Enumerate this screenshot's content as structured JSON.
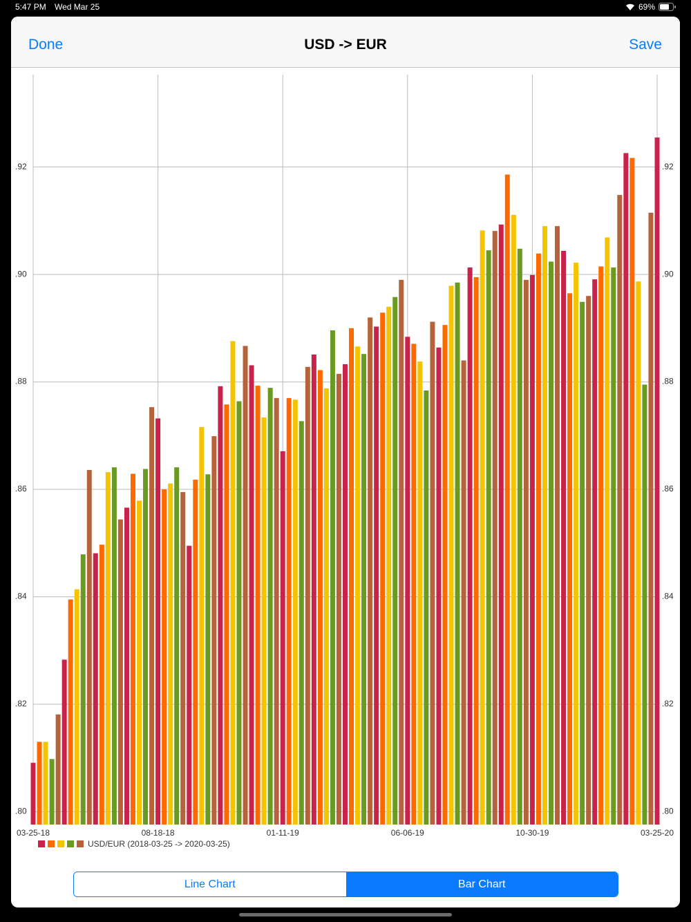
{
  "status_bar": {
    "time": "5:47 PM",
    "date": "Wed Mar 25",
    "battery": "69%"
  },
  "nav": {
    "left": "Done",
    "title": "USD -> EUR",
    "right": "Save"
  },
  "segmented_control": {
    "options": [
      "Line Chart",
      "Bar Chart"
    ],
    "selected": 1
  },
  "chart_data": {
    "type": "bar",
    "categories": [
      "03-25-18",
      null,
      null,
      null,
      null,
      null,
      null,
      null,
      null,
      null,
      null,
      null,
      null,
      null,
      null,
      null,
      null,
      null,
      null,
      null,
      "08-18-18",
      null,
      null,
      null,
      null,
      null,
      null,
      null,
      null,
      null,
      null,
      null,
      null,
      null,
      null,
      null,
      null,
      null,
      null,
      null,
      "01-11-19",
      null,
      null,
      null,
      null,
      null,
      null,
      null,
      null,
      null,
      null,
      null,
      null,
      null,
      null,
      null,
      null,
      null,
      null,
      null,
      "06-06-19",
      null,
      null,
      null,
      null,
      null,
      null,
      null,
      null,
      null,
      null,
      null,
      null,
      null,
      null,
      null,
      null,
      null,
      null,
      null,
      "10-30-19",
      null,
      null,
      null,
      null,
      null,
      null,
      null,
      null,
      null,
      null,
      null,
      null,
      null,
      null,
      null,
      null,
      null,
      null,
      null,
      "03-25-20"
    ],
    "series": [
      {
        "name": "USD/EUR (2018-03-25 -> 2020-03-25)",
        "colors": [
          "#c8234b",
          "#ff6a00",
          "#f5c400",
          "#6b9a22",
          "#b5633a"
        ],
        "values": [
          0.8091,
          0.813,
          0.813,
          0.8098,
          0.8181,
          0.8283,
          0.8395,
          0.8414,
          0.8479,
          0.8636,
          0.8481,
          0.8497,
          0.8632,
          0.8641,
          0.8544,
          0.8566,
          0.8629,
          0.8579,
          0.8638,
          0.8753,
          0.8732,
          0.86,
          0.8611,
          0.8641,
          0.8595,
          0.8495,
          0.8618,
          0.8716,
          0.8628,
          0.8699,
          0.8792,
          0.8758,
          0.8876,
          0.8764,
          0.8867,
          0.8831,
          0.8793,
          0.8734,
          0.8789,
          0.877,
          0.8671,
          0.877,
          0.8767,
          0.8727,
          0.8828,
          0.8851,
          0.8822,
          0.8788,
          0.8896,
          0.8815,
          0.8833,
          0.89,
          0.8866,
          0.8852,
          0.892,
          0.8903,
          0.8929,
          0.894,
          0.8958,
          0.899,
          0.8884,
          0.8871,
          0.8838,
          0.8784,
          0.8912,
          0.8864,
          0.8906,
          0.8979,
          0.8985,
          0.884,
          0.9013,
          0.8995,
          0.9082,
          0.9045,
          0.9081,
          0.9093,
          0.9186,
          0.9111,
          0.9048,
          0.899,
          0.8999,
          0.9039,
          0.909,
          0.9024,
          0.909,
          0.9044,
          0.8965,
          0.9022,
          0.8949,
          0.896,
          0.8991,
          0.9015,
          0.9069,
          0.9013,
          0.9148,
          0.9226,
          0.9217,
          0.8987,
          0.8795,
          0.9115,
          0.9255
        ]
      }
    ],
    "ylim": [
      0.7976,
      0.9372
    ],
    "yticks": [
      {
        "value": 0.8,
        "label": ".80"
      },
      {
        "value": 0.82,
        "label": ".82"
      },
      {
        "value": 0.84,
        "label": ".84"
      },
      {
        "value": 0.86,
        "label": ".86"
      },
      {
        "value": 0.88,
        "label": ".88"
      },
      {
        "value": 0.9,
        "label": ".90"
      },
      {
        "value": 0.92,
        "label": ".92"
      }
    ],
    "grid": true
  }
}
